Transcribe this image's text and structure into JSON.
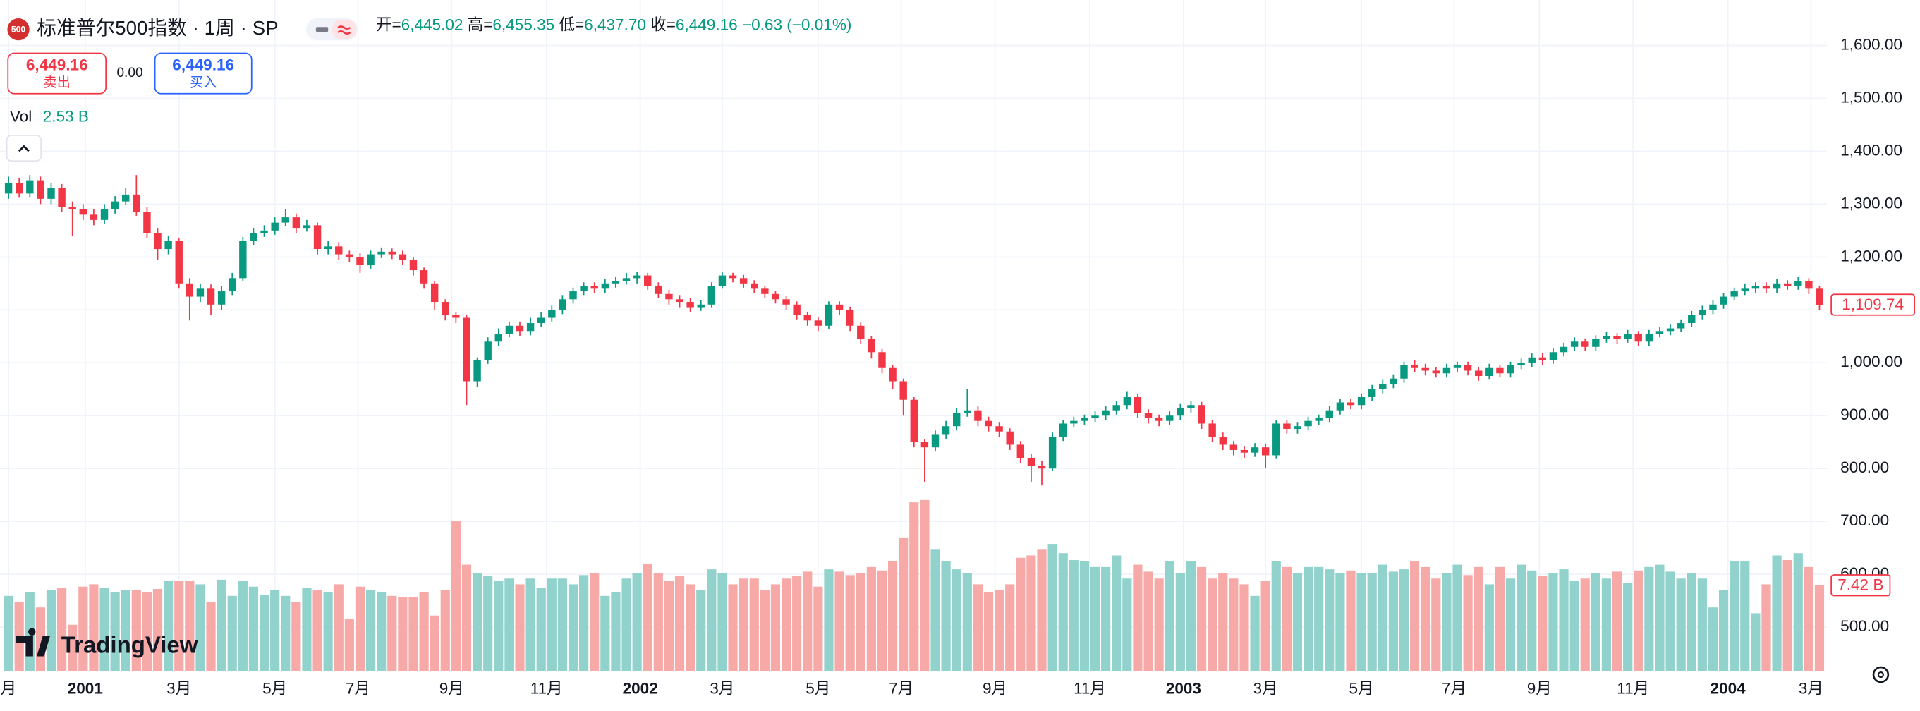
{
  "header": {
    "symbol_icon": "500",
    "title": "标准普尔500指数 · 1周 · SP",
    "ohlc": [
      {
        "label": "开=",
        "value": "6,445.02"
      },
      {
        "label": "高=",
        "value": "6,455.35"
      },
      {
        "label": "低=",
        "value": "6,437.70"
      },
      {
        "label": "收=",
        "value": "6,449.16"
      }
    ],
    "change": "−0.63 (−0.01%)"
  },
  "trade": {
    "sell_price": "6,449.16",
    "sell": "卖出",
    "spread": "0.00",
    "buy_price": "6,449.16",
    "buy": "买入"
  },
  "volume_legend": {
    "label": "Vol",
    "value": "2.53 B"
  },
  "logo": "TradingView",
  "chart_data": {
    "type": "candlestick",
    "grid": true,
    "up_color": "#089981",
    "down_color": "#f23645",
    "volume_up_color": "#92d2cc",
    "volume_down_color": "#f7a9a7",
    "xlim": [
      -0.8,
      170.7
    ],
    "xticks": [
      {
        "value": 0,
        "label": "月"
      },
      {
        "value": 7.2,
        "label": "2001"
      },
      {
        "value": 16,
        "label": "3月"
      },
      {
        "value": 25,
        "label": "5月"
      },
      {
        "value": 32.8,
        "label": "7月"
      },
      {
        "value": 41.6,
        "label": "9月"
      },
      {
        "value": 50.5,
        "label": "11月"
      },
      {
        "value": 59.3,
        "label": "2002"
      },
      {
        "value": 67,
        "label": "3月"
      },
      {
        "value": 76,
        "label": "5月"
      },
      {
        "value": 83.8,
        "label": "7月"
      },
      {
        "value": 92.6,
        "label": "9月"
      },
      {
        "value": 101.5,
        "label": "11月"
      },
      {
        "value": 110.3,
        "label": "2003"
      },
      {
        "value": 118,
        "label": "3月"
      },
      {
        "value": 127,
        "label": "5月"
      },
      {
        "value": 135.7,
        "label": "7月"
      },
      {
        "value": 143.7,
        "label": "9月"
      },
      {
        "value": 152.5,
        "label": "11月"
      },
      {
        "value": 161.4,
        "label": "2004"
      },
      {
        "value": 169.2,
        "label": "3月"
      }
    ],
    "ylim": [
      417,
      1686
    ],
    "yticks": [
      {
        "value": 1600,
        "label": "1,600.00"
      },
      {
        "value": 1500,
        "label": "1,500.00"
      },
      {
        "value": 1400,
        "label": "1,400.00"
      },
      {
        "value": 1300,
        "label": "1,300.00"
      },
      {
        "value": 1200,
        "label": "1,200.00"
      },
      {
        "value": 1100,
        "label": "1,100.00"
      },
      {
        "value": 1000,
        "label": "1,000.00"
      },
      {
        "value": 900,
        "label": "900.00"
      },
      {
        "value": 800,
        "label": "800.00"
      },
      {
        "value": 700,
        "label": "700.00"
      },
      {
        "value": 600,
        "label": "600.00"
      },
      {
        "value": 500,
        "label": "500.00"
      }
    ],
    "vlim": [
      0,
      16
    ],
    "last_close_label": "1,109.74",
    "last_volume_label": "7.42 B",
    "series": {
      "open": [
        1320,
        1340,
        1320,
        1345,
        1310,
        1330,
        1295,
        1290,
        1280,
        1270,
        1290,
        1305,
        1318,
        1285,
        1245,
        1215,
        1230,
        1150,
        1125,
        1140,
        1110,
        1135,
        1160,
        1230,
        1245,
        1250,
        1265,
        1275,
        1255,
        1260,
        1215,
        1220,
        1205,
        1200,
        1185,
        1205,
        1210,
        1205,
        1195,
        1175,
        1150,
        1115,
        1090,
        1085,
        965,
        1005,
        1040,
        1055,
        1070,
        1060,
        1075,
        1085,
        1100,
        1120,
        1135,
        1145,
        1140,
        1150,
        1155,
        1160,
        1165,
        1145,
        1130,
        1120,
        1115,
        1105,
        1110,
        1145,
        1165,
        1160,
        1150,
        1140,
        1130,
        1120,
        1110,
        1090,
        1080,
        1070,
        1110,
        1100,
        1070,
        1045,
        1020,
        990,
        965,
        930,
        850,
        840,
        865,
        880,
        905,
        910,
        890,
        880,
        870,
        845,
        820,
        805,
        800,
        860,
        885,
        890,
        895,
        900,
        910,
        920,
        935,
        905,
        895,
        890,
        900,
        915,
        920,
        885,
        860,
        845,
        835,
        830,
        840,
        825,
        885,
        875,
        880,
        890,
        895,
        910,
        925,
        920,
        935,
        950,
        960,
        970,
        995,
        990,
        985,
        980,
        990,
        995,
        985,
        975,
        990,
        980,
        995,
        1000,
        1010,
        1005,
        1020,
        1030,
        1040,
        1030,
        1045,
        1050,
        1045,
        1055,
        1040,
        1055,
        1060,
        1065,
        1075,
        1090,
        1100,
        1110,
        1125,
        1135,
        1140,
        1145,
        1140,
        1150,
        1145,
        1155,
        1140
      ],
      "high": [
        1352,
        1350,
        1355,
        1352,
        1340,
        1338,
        1305,
        1300,
        1290,
        1300,
        1315,
        1330,
        1355,
        1295,
        1255,
        1240,
        1235,
        1160,
        1150,
        1148,
        1145,
        1170,
        1238,
        1255,
        1260,
        1275,
        1290,
        1282,
        1270,
        1265,
        1230,
        1228,
        1212,
        1208,
        1212,
        1218,
        1216,
        1212,
        1200,
        1180,
        1155,
        1120,
        1095,
        1090,
        1010,
        1048,
        1065,
        1078,
        1078,
        1085,
        1095,
        1108,
        1128,
        1142,
        1152,
        1152,
        1158,
        1162,
        1170,
        1172,
        1170,
        1152,
        1138,
        1128,
        1122,
        1118,
        1152,
        1172,
        1170,
        1166,
        1156,
        1146,
        1136,
        1126,
        1116,
        1096,
        1086,
        1116,
        1116,
        1106,
        1076,
        1050,
        1026,
        996,
        970,
        935,
        855,
        872,
        890,
        915,
        950,
        918,
        898,
        888,
        876,
        852,
        828,
        815,
        868,
        892,
        898,
        902,
        908,
        918,
        928,
        945,
        940,
        912,
        902,
        908,
        922,
        928,
        926,
        892,
        868,
        852,
        842,
        848,
        846,
        892,
        892,
        888,
        898,
        902,
        918,
        932,
        932,
        942,
        958,
        968,
        978,
        1002,
        1005,
        998,
        992,
        998,
        1002,
        1002,
        992,
        998,
        996,
        1002,
        1008,
        1018,
        1018,
        1028,
        1038,
        1048,
        1046,
        1052,
        1058,
        1056,
        1062,
        1060,
        1062,
        1068,
        1072,
        1082,
        1098,
        1108,
        1118,
        1132,
        1142,
        1150,
        1152,
        1152,
        1158,
        1156,
        1162,
        1160,
        1145
      ],
      "low": [
        1310,
        1312,
        1312,
        1300,
        1300,
        1285,
        1240,
        1270,
        1260,
        1262,
        1282,
        1298,
        1278,
        1235,
        1195,
        1205,
        1140,
        1080,
        1115,
        1090,
        1100,
        1128,
        1155,
        1222,
        1238,
        1242,
        1258,
        1245,
        1248,
        1205,
        1205,
        1195,
        1190,
        1170,
        1178,
        1198,
        1196,
        1185,
        1165,
        1140,
        1100,
        1080,
        1075,
        920,
        955,
        998,
        1032,
        1048,
        1050,
        1052,
        1068,
        1078,
        1092,
        1112,
        1128,
        1132,
        1132,
        1142,
        1148,
        1150,
        1138,
        1122,
        1110,
        1105,
        1095,
        1098,
        1105,
        1140,
        1152,
        1142,
        1132,
        1122,
        1112,
        1100,
        1082,
        1070,
        1060,
        1064,
        1090,
        1060,
        1035,
        1008,
        980,
        950,
        900,
        840,
        775,
        832,
        855,
        872,
        898,
        880,
        870,
        860,
        835,
        810,
        775,
        768,
        795,
        852,
        878,
        882,
        888,
        892,
        902,
        912,
        895,
        885,
        880,
        882,
        892,
        906,
        875,
        850,
        835,
        825,
        820,
        822,
        800,
        818,
        866,
        866,
        872,
        882,
        888,
        902,
        912,
        912,
        928,
        942,
        952,
        962,
        982,
        976,
        972,
        972,
        982,
        976,
        966,
        968,
        972,
        972,
        988,
        992,
        996,
        998,
        1012,
        1022,
        1022,
        1022,
        1038,
        1036,
        1038,
        1032,
        1032,
        1048,
        1052,
        1058,
        1068,
        1082,
        1092,
        1102,
        1118,
        1128,
        1132,
        1132,
        1132,
        1138,
        1138,
        1130,
        1100
      ],
      "close": [
        1340,
        1320,
        1345,
        1310,
        1330,
        1295,
        1290,
        1280,
        1270,
        1290,
        1305,
        1318,
        1285,
        1245,
        1215,
        1230,
        1150,
        1125,
        1140,
        1110,
        1135,
        1160,
        1230,
        1245,
        1250,
        1265,
        1275,
        1255,
        1260,
        1215,
        1220,
        1205,
        1200,
        1185,
        1205,
        1210,
        1205,
        1195,
        1175,
        1150,
        1115,
        1090,
        1085,
        965,
        1005,
        1040,
        1055,
        1070,
        1060,
        1075,
        1085,
        1100,
        1120,
        1135,
        1145,
        1140,
        1150,
        1155,
        1160,
        1165,
        1145,
        1130,
        1120,
        1115,
        1105,
        1110,
        1145,
        1165,
        1160,
        1150,
        1140,
        1130,
        1120,
        1110,
        1090,
        1080,
        1070,
        1110,
        1100,
        1070,
        1045,
        1020,
        990,
        965,
        930,
        850,
        840,
        865,
        880,
        905,
        910,
        890,
        880,
        870,
        845,
        820,
        805,
        800,
        860,
        885,
        890,
        895,
        900,
        910,
        920,
        935,
        905,
        895,
        890,
        900,
        915,
        920,
        885,
        860,
        845,
        835,
        830,
        840,
        825,
        885,
        875,
        880,
        890,
        895,
        910,
        925,
        920,
        935,
        950,
        960,
        970,
        995,
        990,
        985,
        980,
        990,
        995,
        985,
        975,
        990,
        980,
        995,
        1000,
        1010,
        1005,
        1020,
        1030,
        1040,
        1030,
        1045,
        1050,
        1045,
        1055,
        1040,
        1055,
        1060,
        1065,
        1075,
        1090,
        1100,
        1110,
        1125,
        1135,
        1140,
        1145,
        1140,
        1150,
        1145,
        1155,
        1140,
        1109.74
      ],
      "volume": [
        6.5,
        6.0,
        6.8,
        5.5,
        7.0,
        7.2,
        4.0,
        7.3,
        7.5,
        7.2,
        6.8,
        7.0,
        7.0,
        6.8,
        7.1,
        7.8,
        7.8,
        7.8,
        7.5,
        6.0,
        7.9,
        6.5,
        7.8,
        7.3,
        6.6,
        7.0,
        6.5,
        6.0,
        7.2,
        7.0,
        6.8,
        7.5,
        4.5,
        7.3,
        7.0,
        6.8,
        6.5,
        6.4,
        6.4,
        6.8,
        4.8,
        7.0,
        13.0,
        9.2,
        8.5,
        8.2,
        7.8,
        8.0,
        7.5,
        8.0,
        7.2,
        8.0,
        8.0,
        7.5,
        8.3,
        8.5,
        6.5,
        6.8,
        8.0,
        8.5,
        9.3,
        8.5,
        7.8,
        8.2,
        7.5,
        7.0,
        8.8,
        8.5,
        7.5,
        8.0,
        8.0,
        7.0,
        7.5,
        8.0,
        8.2,
        8.6,
        7.3,
        8.8,
        8.6,
        8.3,
        8.5,
        9.0,
        8.7,
        9.5,
        11.5,
        14.6,
        14.8,
        10.5,
        9.5,
        8.8,
        8.5,
        7.5,
        6.8,
        7.0,
        7.5,
        9.8,
        10.0,
        10.5,
        11.0,
        10.2,
        9.6,
        9.5,
        9.0,
        9.0,
        10.0,
        8.0,
        9.2,
        8.6,
        8.0,
        9.5,
        8.5,
        9.5,
        9.0,
        8.0,
        8.5,
        8.0,
        7.5,
        6.5,
        7.8,
        9.5,
        9.0,
        8.5,
        9.0,
        9.0,
        8.8,
        8.5,
        8.7,
        8.5,
        8.5,
        9.2,
        8.6,
        8.8,
        9.5,
        9.0,
        8.0,
        8.5,
        9.2,
        8.3,
        9.0,
        7.5,
        9.0,
        8.0,
        9.2,
        8.7,
        8.2,
        8.5,
        8.8,
        7.8,
        8.0,
        8.5,
        8.0,
        8.6,
        7.6,
        8.7,
        9.0,
        9.2,
        8.6,
        8.0,
        8.5,
        8.0,
        5.5,
        7.0,
        9.5,
        9.5,
        5.0,
        7.5,
        10.0,
        9.6,
        10.2,
        9.0,
        7.42
      ]
    }
  }
}
